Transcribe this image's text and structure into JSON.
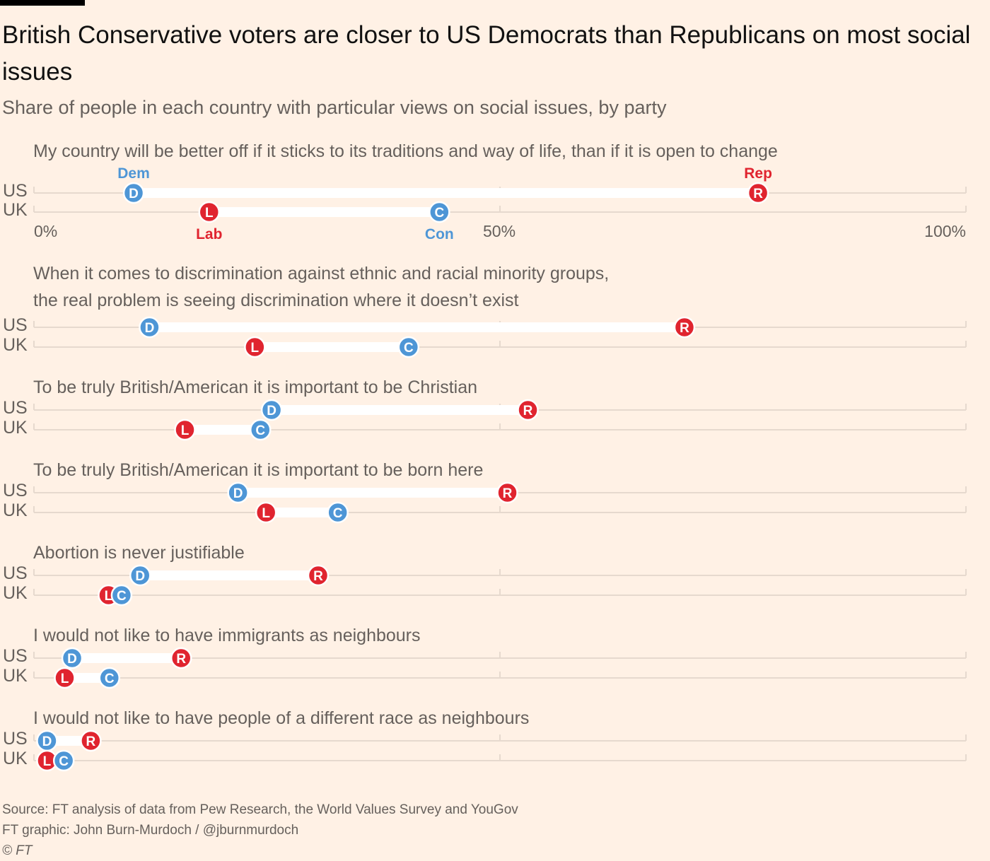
{
  "title": "British Conservative voters are closer to US Democrats than Republicans on most social issues",
  "subtitle": "Share of people in each country with particular views on social issues, by party",
  "footer": {
    "source": "Source: FT analysis of data from Pew Research, the World Values Survey and YouGov",
    "credit": "FT graphic: John Burn-Murdoch / @jburnmurdoch",
    "copyright": "© FT"
  },
  "colors": {
    "background": "#FFF1E5",
    "democrat": "#4E96D6",
    "conservative": "#4E96D6",
    "republican": "#E0242F",
    "labour": "#E0242F",
    "track": "#E6D9CE",
    "bar": "#FFFFFF",
    "text": "#66605C"
  },
  "chart_data": {
    "type": "dumbbell",
    "xlim": [
      0,
      100
    ],
    "x_ticks": [
      {
        "value": 0,
        "label": "0%"
      },
      {
        "value": 50,
        "label": "50%"
      },
      {
        "value": 100,
        "label": "100%"
      }
    ],
    "row_labels": {
      "us": "US",
      "uk": "UK"
    },
    "legend": {
      "dem": "Dem",
      "rep": "Rep",
      "lab": "Lab",
      "con": "Con"
    },
    "marker_letters": {
      "dem": "D",
      "rep": "R",
      "lab": "L",
      "con": "C"
    },
    "panels": [
      {
        "question": [
          "My country will be better off if it sticks to its traditions and way of life, than if it is open to change"
        ],
        "us": {
          "D": 10.7,
          "R": 77.7
        },
        "uk": {
          "L": 18.8,
          "C": 43.5
        }
      },
      {
        "question": [
          "When it comes to discrimination against ethnic and racial minority groups,",
          "the real problem is seeing discrimination where it doesn’t exist"
        ],
        "us": {
          "D": 12.4,
          "R": 69.8
        },
        "uk": {
          "L": 23.7,
          "C": 40.2
        }
      },
      {
        "question": [
          "To be truly British/American it is important to be Christian"
        ],
        "us": {
          "D": 25.5,
          "R": 53.0
        },
        "uk": {
          "L": 16.2,
          "C": 24.3
        }
      },
      {
        "question": [
          "To be truly British/American it is important to be born here"
        ],
        "us": {
          "D": 21.9,
          "R": 50.8
        },
        "uk": {
          "L": 24.9,
          "C": 32.6
        }
      },
      {
        "question": [
          "Abortion is never justifiable"
        ],
        "us": {
          "D": 11.4,
          "R": 30.5
        },
        "uk": {
          "L": 8.0,
          "C": 9.4
        }
      },
      {
        "question": [
          "I would not like to have immigrants as neighbours"
        ],
        "us": {
          "D": 4.1,
          "R": 15.8
        },
        "uk": {
          "L": 3.3,
          "C": 8.1
        }
      },
      {
        "question": [
          "I would not like to have people of a different race as neighbours"
        ],
        "us": {
          "D": 1.4,
          "R": 6.1
        },
        "uk": {
          "L": 1.4,
          "C": 3.2
        }
      }
    ]
  }
}
